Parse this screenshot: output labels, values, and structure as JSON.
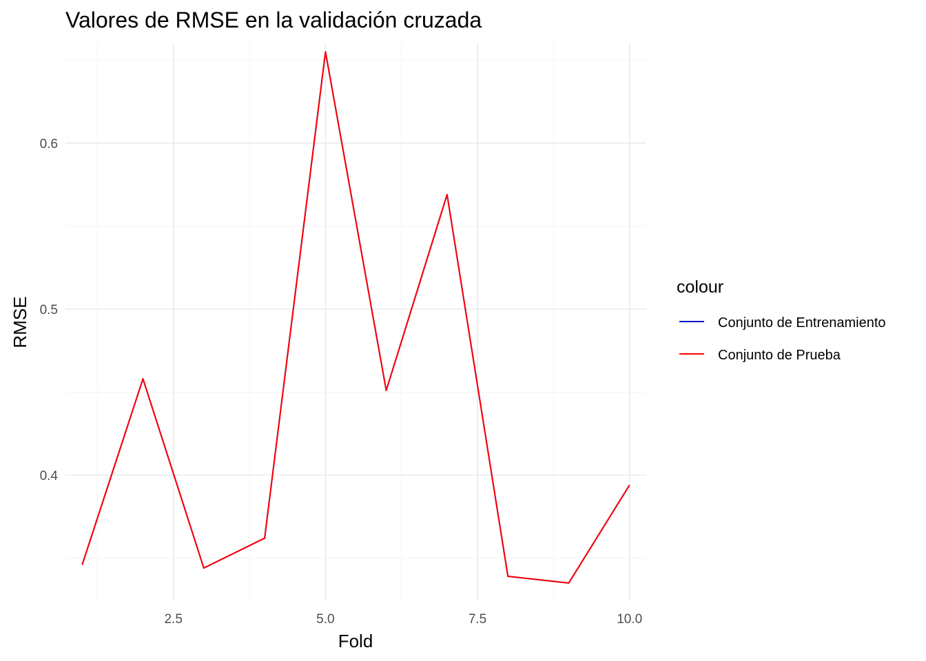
{
  "chart_data": {
    "type": "line",
    "title": "Valores de RMSE en la validación cruzada",
    "xlabel": "Fold",
    "ylabel": "RMSE",
    "xlim": [
      0.725,
      10.275
    ],
    "ylim": [
      0.3245,
      0.6605
    ],
    "x_ticks": [
      2.5,
      5.0,
      7.5,
      10.0
    ],
    "x_tick_labels": [
      "2.5",
      "5.0",
      "7.5",
      "10.0"
    ],
    "y_ticks": [
      0.4,
      0.5,
      0.6
    ],
    "y_tick_labels": [
      "0.4",
      "0.5",
      "0.6"
    ],
    "grid": true,
    "legend": {
      "title": "colour",
      "placement": "right",
      "entries": [
        {
          "label": "Conjunto de Entrenamiento",
          "color": "#0000cd"
        },
        {
          "label": "Conjunto de Prueba",
          "color": "#ff0000"
        }
      ]
    },
    "series": [
      {
        "name": "Conjunto de Entrenamiento",
        "color": "#0000cd",
        "x": [
          1,
          2,
          3,
          4,
          5,
          6,
          7,
          8,
          9,
          10
        ],
        "values": [
          0.346,
          0.458,
          0.344,
          0.362,
          0.655,
          0.451,
          0.569,
          0.339,
          0.335,
          0.394
        ]
      },
      {
        "name": "Conjunto de Prueba",
        "color": "#ff0000",
        "x": [
          1,
          2,
          3,
          4,
          5,
          6,
          7,
          8,
          9,
          10
        ],
        "values": [
          0.346,
          0.458,
          0.344,
          0.362,
          0.655,
          0.451,
          0.569,
          0.339,
          0.335,
          0.394
        ]
      }
    ]
  }
}
